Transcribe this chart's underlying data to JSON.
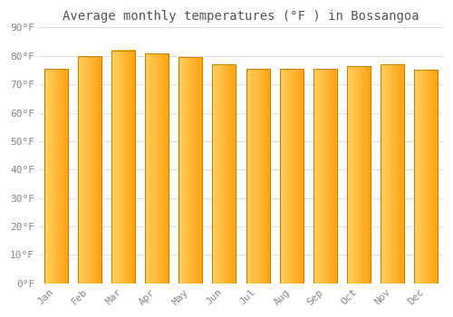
{
  "title": "Average monthly temperatures (°F ) in Bossangoa",
  "months": [
    "Jan",
    "Feb",
    "Mar",
    "Apr",
    "May",
    "Jun",
    "Jul",
    "Aug",
    "Sep",
    "Oct",
    "Nov",
    "Dec"
  ],
  "values": [
    75.5,
    80.0,
    82.0,
    81.0,
    79.5,
    77.0,
    75.5,
    75.5,
    75.5,
    76.5,
    77.0,
    75.0
  ],
  "bar_color_left": "#FFD060",
  "bar_color_right": "#FFA010",
  "bar_edge_color": "#CC8000",
  "background_color": "#FFFFFF",
  "plot_bg_color": "#FFFFFF",
  "grid_color": "#E0E0E0",
  "text_color": "#888888",
  "title_color": "#555555",
  "ylim": [
    0,
    90
  ],
  "yticks": [
    0,
    10,
    20,
    30,
    40,
    50,
    60,
    70,
    80,
    90
  ],
  "ytick_labels": [
    "0°F",
    "10°F",
    "20°F",
    "30°F",
    "40°F",
    "50°F",
    "60°F",
    "70°F",
    "80°F",
    "90°F"
  ],
  "title_fontsize": 10,
  "tick_fontsize": 8,
  "bar_width": 0.7,
  "gradient_steps": 100
}
